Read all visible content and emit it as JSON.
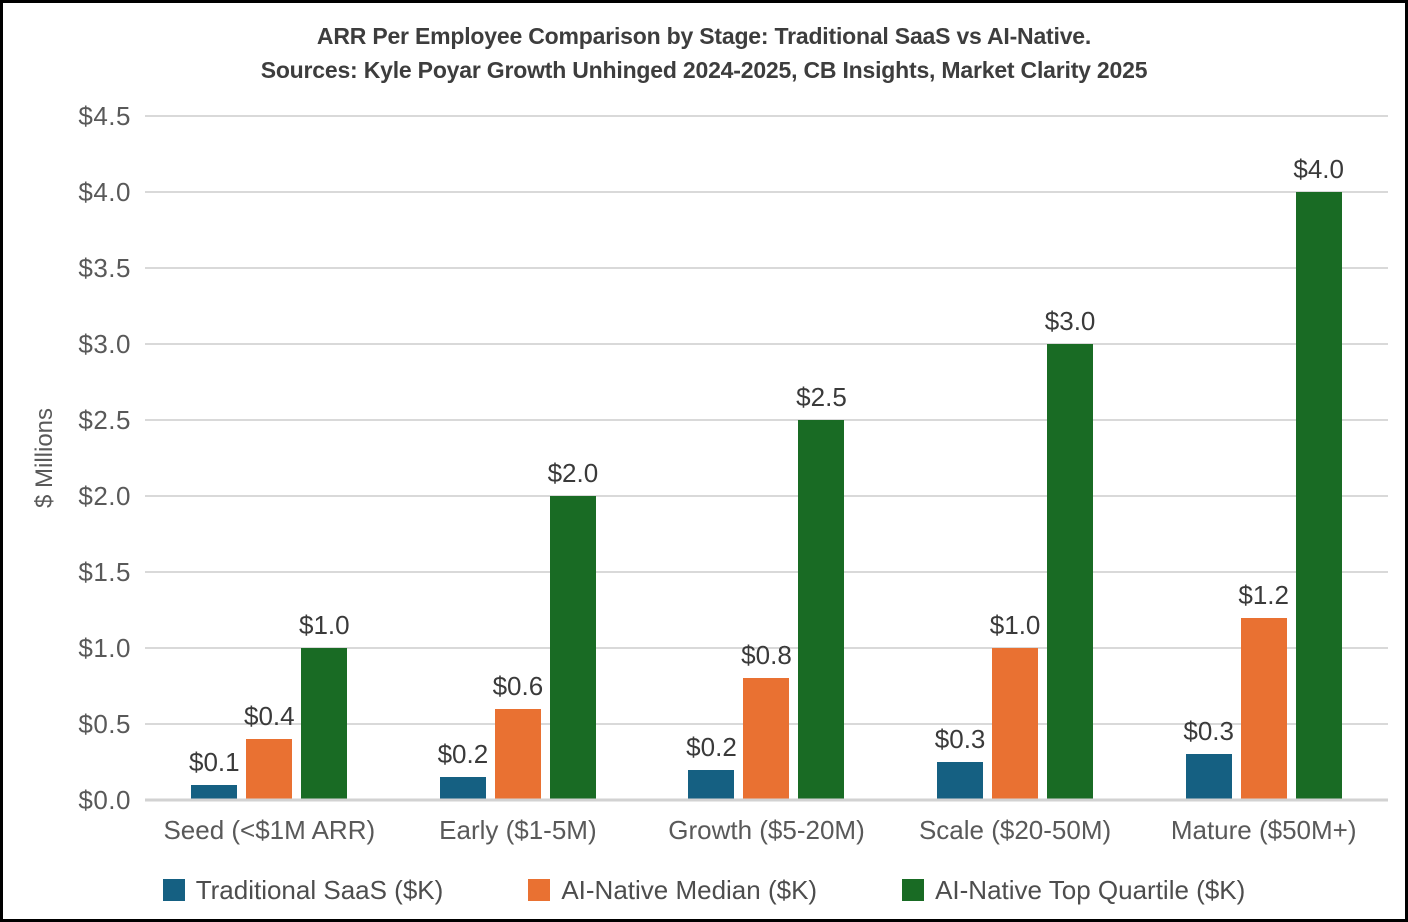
{
  "frame": {
    "background_color": "#FFFFFF",
    "border_color": "#000000"
  },
  "chart_data": {
    "type": "bar",
    "title": "ARR Per Employee Comparison by Stage: Traditional SaaS vs AI-Native.",
    "subtitle": "Sources: Kyle Poyar Growth Unhinged 2024-2025, CB Insights, Market Clarity 2025",
    "ylabel": "$ Millions",
    "xlabel": "",
    "ylim": [
      0,
      4.5
    ],
    "grid": "horizontal",
    "legend_position": "bottom",
    "categories": [
      "Seed (<$1M ARR)",
      "Early ($1-5M)",
      "Growth ($5-20M)",
      "Scale ($20-50M)",
      "Mature ($50M+)"
    ],
    "y_ticks": [
      "$0.0",
      "$0.5",
      "$1.0",
      "$1.5",
      "$2.0",
      "$2.5",
      "$3.0",
      "$3.5",
      "$4.0",
      "$4.5"
    ],
    "y_tick_values": [
      0,
      0.5,
      1.0,
      1.5,
      2.0,
      2.5,
      3.0,
      3.5,
      4.0,
      4.5
    ],
    "series": [
      {
        "name": "Traditional SaaS ($K)",
        "color": "#156082",
        "values": [
          0.1,
          0.15,
          0.2,
          0.25,
          0.3
        ],
        "data_labels": [
          "$0.1",
          "$0.2",
          "$0.2",
          "$0.3",
          "$0.3"
        ]
      },
      {
        "name": "AI-Native Median ($K)",
        "color": "#E97132",
        "values": [
          0.4,
          0.6,
          0.8,
          1.0,
          1.2
        ],
        "data_labels": [
          "$0.4",
          "$0.6",
          "$0.8",
          "$1.0",
          "$1.2"
        ]
      },
      {
        "name": "AI-Native Top Quartile ($K)",
        "color": "#196B24",
        "values": [
          1.0,
          2.0,
          2.5,
          3.0,
          4.0
        ],
        "data_labels": [
          "$1.0",
          "$2.0",
          "$2.5",
          "$3.0",
          "$4.0"
        ]
      }
    ],
    "gridline_color": "#D9D9D9",
    "tick_label_color": "#595959",
    "data_label_color": "#3A3A3A",
    "title_color": "#3D3D3D"
  }
}
